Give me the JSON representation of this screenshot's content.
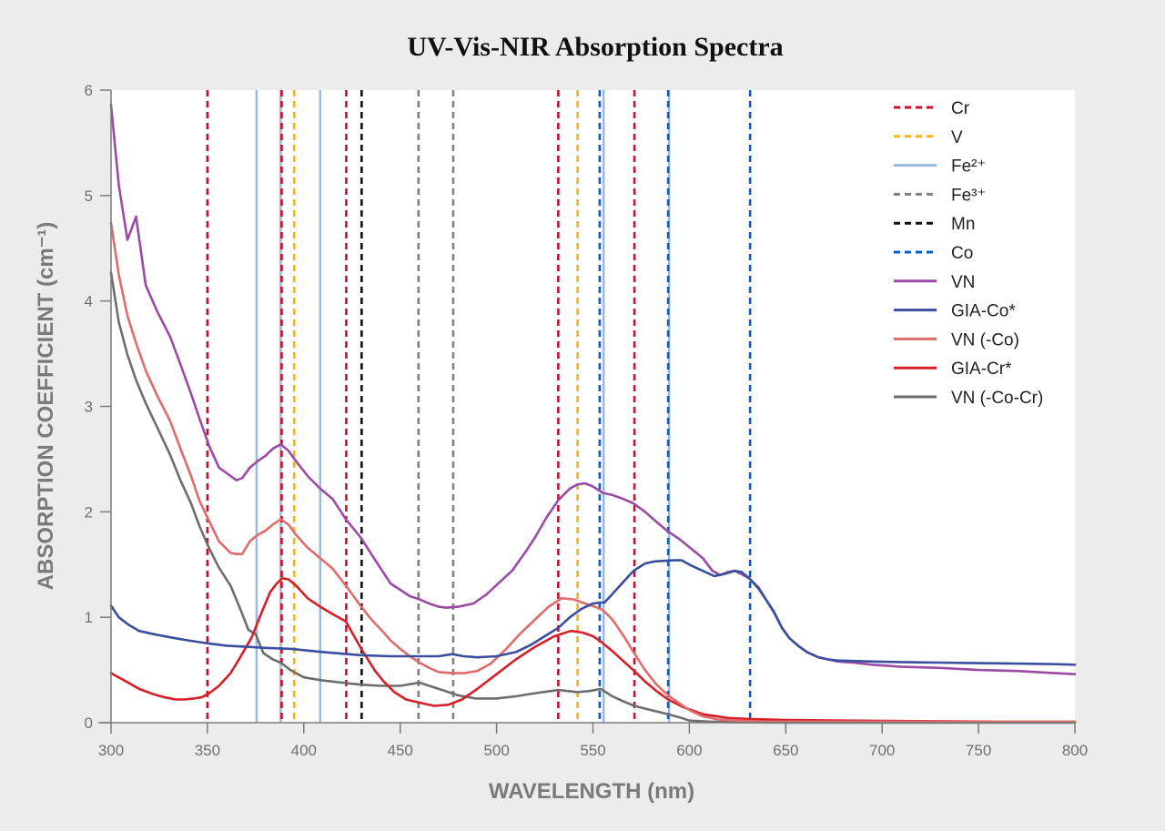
{
  "chart_data": {
    "type": "line",
    "title": "UV-Vis-NIR Absorption Spectra",
    "xlabel": "WAVELENGTH (nm)",
    "ylabel": "ABSORPTION COEFFICIENT (cm⁻¹)",
    "xlim": [
      300,
      800
    ],
    "ylim": [
      0,
      6
    ],
    "xticks": [
      300,
      350,
      400,
      450,
      500,
      550,
      600,
      650,
      700,
      750,
      800
    ],
    "yticks": [
      0,
      1,
      2,
      3,
      4,
      5,
      6
    ],
    "grid": false,
    "legend_position": "top-right",
    "reference_lines": [
      {
        "name": "Cr",
        "color": "#c8102e",
        "style": "dashed",
        "x": [
          350,
          388.5,
          422,
          532,
          571.5
        ]
      },
      {
        "name": "V",
        "color": "#f0b323",
        "style": "dashed",
        "x": [
          395,
          542
        ]
      },
      {
        "name": "Fe²⁺",
        "color": "#9ab8e0",
        "style": "solid",
        "x": [
          375.5,
          388,
          408.5,
          555.5,
          589.5
        ]
      },
      {
        "name": "Fe³⁺",
        "color": "#808080",
        "style": "dashed",
        "x": [
          459.5,
          477.5
        ]
      },
      {
        "name": "Mn",
        "color": "#111111",
        "style": "dashed",
        "x": [
          430
        ]
      },
      {
        "name": "Co",
        "color": "#0a5cc4",
        "style": "dashed",
        "x": [
          553.5,
          589,
          631.5
        ]
      }
    ],
    "series": [
      {
        "name": "VN",
        "color": "#9b4aa6",
        "x": [
          300,
          304,
          308.5,
          313,
          318,
          324,
          330.7,
          336,
          341.5,
          346,
          351,
          356,
          362,
          365,
          368,
          372,
          376,
          380,
          384,
          388,
          392,
          396,
          402,
          408.5,
          415,
          421.8,
          429.8,
          435,
          440.7,
          445,
          450,
          455,
          460,
          465,
          470,
          474,
          480,
          488,
          495,
          502,
          508,
          515,
          520,
          526,
          532,
          538,
          542,
          546,
          550,
          555,
          560,
          566,
          571,
          577,
          582,
          588.5,
          595,
          601,
          607,
          612,
          616,
          620,
          623.4,
          627,
          631,
          636,
          640,
          644,
          648,
          652,
          656.4,
          661,
          667,
          672,
          677,
          685,
          695,
          710,
          730,
          750,
          770,
          790,
          800
        ],
        "y": [
          5.86,
          5.1,
          4.58,
          4.8,
          4.15,
          3.9,
          3.66,
          3.4,
          3.12,
          2.88,
          2.62,
          2.42,
          2.34,
          2.3,
          2.32,
          2.42,
          2.48,
          2.53,
          2.6,
          2.64,
          2.58,
          2.48,
          2.34,
          2.22,
          2.12,
          1.93,
          1.75,
          1.6,
          1.44,
          1.32,
          1.26,
          1.2,
          1.17,
          1.13,
          1.1,
          1.09,
          1.1,
          1.13,
          1.22,
          1.34,
          1.44,
          1.62,
          1.76,
          1.95,
          2.11,
          2.22,
          2.26,
          2.27,
          2.24,
          2.18,
          2.16,
          2.12,
          2.08,
          2.0,
          1.92,
          1.82,
          1.74,
          1.65,
          1.56,
          1.44,
          1.4,
          1.43,
          1.44,
          1.41,
          1.37,
          1.28,
          1.16,
          1.04,
          0.9,
          0.8,
          0.73,
          0.67,
          0.62,
          0.6,
          0.58,
          0.57,
          0.55,
          0.53,
          0.52,
          0.5,
          0.49,
          0.47,
          0.46
        ]
      },
      {
        "name": "GIA-Co*",
        "color": "#3a4ea0",
        "x": [
          300,
          304,
          309,
          314.6,
          322,
          330.7,
          340,
          351,
          360,
          370,
          380,
          393.5,
          410,
          430,
          445,
          460,
          470,
          477,
          483,
          490,
          500,
          510,
          518,
          525,
          532,
          538,
          544,
          550,
          553.5,
          556,
          560,
          566,
          571,
          577,
          582,
          591.8,
          596,
          601,
          607,
          613,
          618,
          623.4,
          627,
          631,
          636,
          640,
          644,
          648,
          652,
          656.4,
          661,
          667,
          672,
          676.8,
          685,
          695.6,
          710,
          730,
          750,
          770,
          790,
          800
        ],
        "y": [
          1.11,
          1.0,
          0.93,
          0.87,
          0.84,
          0.81,
          0.78,
          0.75,
          0.73,
          0.72,
          0.71,
          0.7,
          0.67,
          0.64,
          0.63,
          0.63,
          0.63,
          0.65,
          0.63,
          0.62,
          0.63,
          0.67,
          0.74,
          0.82,
          0.9,
          1.0,
          1.08,
          1.13,
          1.14,
          1.14,
          1.22,
          1.34,
          1.44,
          1.51,
          1.53,
          1.54,
          1.54,
          1.49,
          1.44,
          1.39,
          1.41,
          1.44,
          1.43,
          1.37,
          1.27,
          1.16,
          1.05,
          0.9,
          0.8,
          0.73,
          0.67,
          0.62,
          0.6,
          0.59,
          0.585,
          0.58,
          0.575,
          0.57,
          0.565,
          0.56,
          0.555,
          0.55
        ]
      },
      {
        "name": "VN (-Co)",
        "color": "#e06b6b",
        "x": [
          300,
          304,
          308.5,
          313,
          318,
          324,
          330.7,
          336,
          341.5,
          346,
          351,
          356,
          362,
          365,
          368,
          372,
          376,
          380,
          384,
          388,
          392,
          396,
          402,
          408.5,
          415,
          421.8,
          429.8,
          435,
          440.7,
          445,
          450,
          455,
          460,
          465,
          470,
          477,
          483,
          490,
          497,
          505,
          512,
          520,
          527,
          533.7,
          540,
          546,
          551,
          555,
          560,
          566,
          571,
          577,
          583,
          589,
          595,
          601,
          607,
          615,
          625,
          640,
          660,
          700,
          750,
          800
        ],
        "y": [
          4.74,
          4.25,
          3.86,
          3.6,
          3.34,
          3.1,
          2.86,
          2.6,
          2.34,
          2.1,
          1.91,
          1.72,
          1.61,
          1.6,
          1.6,
          1.72,
          1.78,
          1.82,
          1.88,
          1.93,
          1.88,
          1.78,
          1.66,
          1.56,
          1.46,
          1.3,
          1.1,
          0.98,
          0.87,
          0.78,
          0.7,
          0.63,
          0.57,
          0.52,
          0.48,
          0.47,
          0.47,
          0.49,
          0.56,
          0.7,
          0.84,
          0.98,
          1.1,
          1.18,
          1.17,
          1.13,
          1.1,
          1.07,
          0.98,
          0.82,
          0.67,
          0.5,
          0.36,
          0.26,
          0.18,
          0.11,
          0.06,
          0.03,
          0.02,
          0.01,
          0.01,
          0.01,
          0.01,
          0.01
        ]
      },
      {
        "name": "GIA-Cr*",
        "color": "#d61f26",
        "x": [
          300,
          307,
          314.6,
          322,
          328,
          333.5,
          338,
          343,
          347,
          351,
          356,
          362,
          367,
          373,
          378,
          382.6,
          386,
          388.8,
          392,
          396,
          402,
          408.5,
          415,
          421.8,
          429.8,
          437,
          441,
          447,
          453,
          460,
          467.6,
          475,
          482,
          490,
          500,
          510,
          520,
          530,
          538.5,
          544.6,
          550,
          554,
          560,
          566,
          571.5,
          577,
          583,
          589,
          596.5,
          607,
          620,
          631,
          650,
          680,
          720,
          760,
          800
        ],
        "y": [
          0.47,
          0.4,
          0.32,
          0.27,
          0.24,
          0.22,
          0.22,
          0.23,
          0.24,
          0.28,
          0.35,
          0.47,
          0.62,
          0.81,
          1.04,
          1.24,
          1.32,
          1.37,
          1.36,
          1.3,
          1.18,
          1.1,
          1.03,
          0.96,
          0.7,
          0.49,
          0.4,
          0.29,
          0.22,
          0.19,
          0.16,
          0.17,
          0.22,
          0.32,
          0.46,
          0.6,
          0.72,
          0.82,
          0.87,
          0.855,
          0.82,
          0.77,
          0.68,
          0.58,
          0.49,
          0.39,
          0.3,
          0.22,
          0.15,
          0.08,
          0.045,
          0.035,
          0.025,
          0.02,
          0.015,
          0.01,
          0.01
        ]
      },
      {
        "name": "VN (-Co-Cr)",
        "color": "#6d6d6d",
        "x": [
          300,
          304,
          308.5,
          313,
          318,
          324,
          330.7,
          336,
          341.5,
          346,
          351,
          356,
          362,
          367,
          371.3,
          375,
          379,
          384,
          388,
          393,
          400,
          410,
          420,
          430,
          440,
          450,
          460,
          470,
          480,
          489,
          500,
          510,
          520,
          532,
          542,
          548,
          554,
          560,
          566,
          571.5,
          580,
          589,
          595,
          600,
          610,
          620,
          650,
          700,
          800
        ],
        "y": [
          4.27,
          3.8,
          3.49,
          3.25,
          3.03,
          2.8,
          2.54,
          2.3,
          2.08,
          1.86,
          1.65,
          1.47,
          1.3,
          1.08,
          0.88,
          0.84,
          0.66,
          0.6,
          0.57,
          0.5,
          0.43,
          0.4,
          0.38,
          0.36,
          0.35,
          0.35,
          0.38,
          0.32,
          0.26,
          0.23,
          0.23,
          0.25,
          0.28,
          0.31,
          0.29,
          0.3,
          0.32,
          0.25,
          0.2,
          0.16,
          0.12,
          0.08,
          0.05,
          0.02,
          0.01,
          0.005,
          0.0,
          0.0,
          0.0
        ]
      }
    ]
  },
  "legend": [
    {
      "label": "Cr"
    },
    {
      "label": "V"
    },
    {
      "label": "Fe²⁺"
    },
    {
      "label": "Fe³⁺"
    },
    {
      "label": "Mn"
    },
    {
      "label": "Co"
    },
    {
      "label": "VN"
    },
    {
      "label": "GIA-Co*"
    },
    {
      "label": "VN (-Co)"
    },
    {
      "label": "GIA-Cr*"
    },
    {
      "label": "VN (-Co-Cr)"
    }
  ]
}
